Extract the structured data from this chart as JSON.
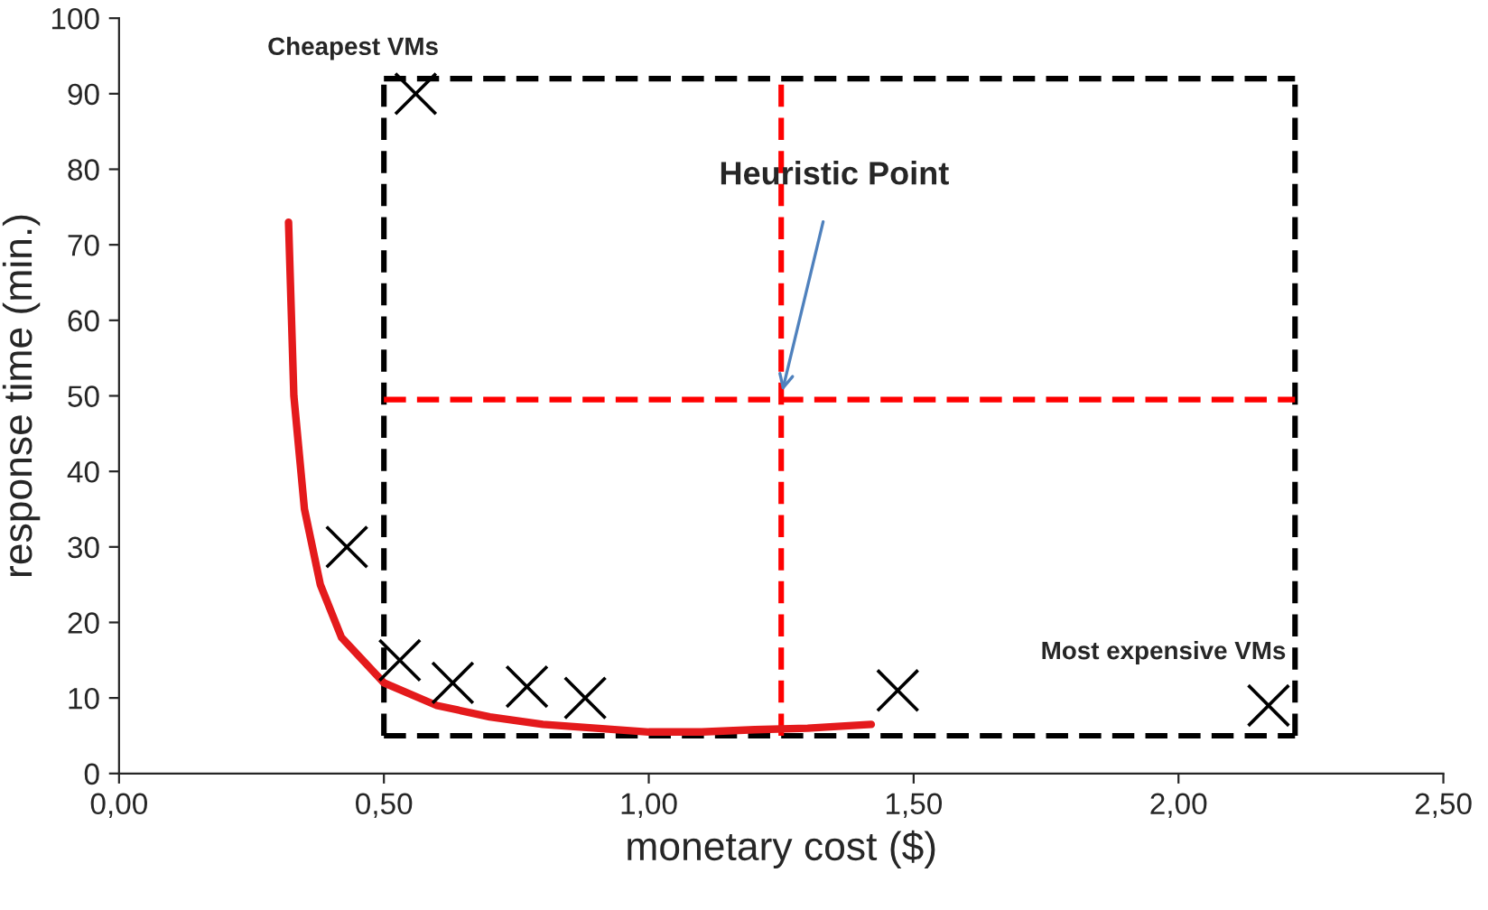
{
  "chart_data": {
    "type": "scatter",
    "xlabel": "monetary cost ($)",
    "ylabel": "response time (min.)",
    "xlim": [
      0,
      2.5
    ],
    "xticks": [
      {
        "value": 0,
        "label": "0,00"
      },
      {
        "value": 0.5,
        "label": "0,50"
      },
      {
        "value": 1,
        "label": "1,00"
      },
      {
        "value": 1.5,
        "label": "1,50"
      },
      {
        "value": 2,
        "label": "2,00"
      },
      {
        "value": 2.5,
        "label": "2,50"
      }
    ],
    "ylim": [
      0,
      100
    ],
    "yticks": [
      0,
      10,
      20,
      30,
      40,
      50,
      60,
      70,
      80,
      90,
      100
    ],
    "grid": false,
    "legend": false,
    "series": [
      {
        "color": "#000000",
        "marker": "cross",
        "x": [
          0.43,
          0.56,
          0.53,
          0.63,
          0.77,
          0.88,
          1.47,
          2.17
        ],
        "values": [
          30,
          90,
          15,
          12,
          11.5,
          10,
          11,
          9
        ]
      },
      {
        "type": "line",
        "color": "#e41a1c",
        "line_style": "solid",
        "x": [
          0.32,
          0.33,
          0.35,
          0.38,
          0.42,
          0.5,
          0.6,
          0.7,
          0.8,
          0.9,
          1.0,
          1.1,
          1.2,
          1.3,
          1.42
        ],
        "values": [
          73,
          50,
          35,
          25,
          18,
          12,
          9,
          7.5,
          6.5,
          6,
          5.5,
          5.5,
          5.8,
          6,
          6.5
        ]
      }
    ],
    "ref_lines": [
      {
        "axis": "x",
        "value": 0.5,
        "color": "#000000",
        "line_style": "dashed"
      },
      {
        "axis": "x",
        "value": 2.22,
        "color": "#000000",
        "line_style": "dashed"
      },
      {
        "axis": "y",
        "value": 5,
        "color": "#000000",
        "line_style": "dashed"
      },
      {
        "axis": "y",
        "value": 92,
        "color": "#000000",
        "line_style": "dashed"
      },
      {
        "axis": "x",
        "value": 1.25,
        "color": "#ff0000",
        "line_style": "dashed"
      },
      {
        "axis": "y",
        "value": 49.5,
        "color": "#ff0000",
        "line_style": "dashed"
      }
    ],
    "annotations": [
      {
        "text": "Heuristic Point",
        "x": 1.25,
        "y": 50
      },
      "Cheapest VMs",
      "Most expensive VMs"
    ]
  }
}
